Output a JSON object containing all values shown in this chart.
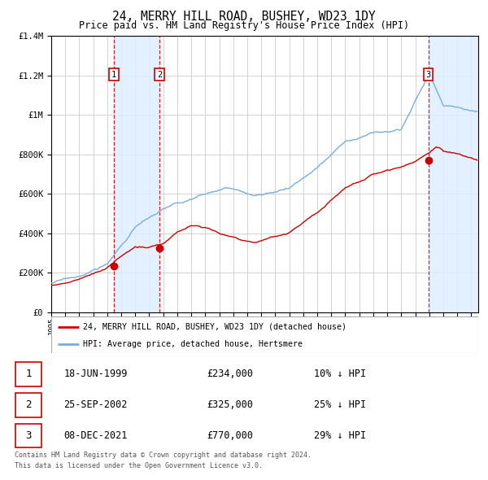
{
  "title": "24, MERRY HILL ROAD, BUSHEY, WD23 1DY",
  "subtitle": "Price paid vs. HM Land Registry's House Price Index (HPI)",
  "legend_line1": "24, MERRY HILL ROAD, BUSHEY, WD23 1DY (detached house)",
  "legend_line2": "HPI: Average price, detached house, Hertsmere",
  "footer1": "Contains HM Land Registry data © Crown copyright and database right 2024.",
  "footer2": "This data is licensed under the Open Government Licence v3.0.",
  "sales": [
    {
      "num": 1,
      "date": "18-JUN-1999",
      "price": 234000,
      "pct": "10%",
      "dir": "↓"
    },
    {
      "num": 2,
      "date": "25-SEP-2002",
      "price": 325000,
      "pct": "25%",
      "dir": "↓"
    },
    {
      "num": 3,
      "date": "08-DEC-2021",
      "price": 770000,
      "pct": "29%",
      "dir": "↓"
    }
  ],
  "red_color": "#cc0000",
  "blue_color": "#7aadda",
  "background_color": "#ffffff",
  "grid_color": "#cccccc",
  "shade_color": "#ddeeff",
  "ylim_max": 1400000,
  "xlim_start": 1995.0,
  "xlim_end": 2025.5
}
